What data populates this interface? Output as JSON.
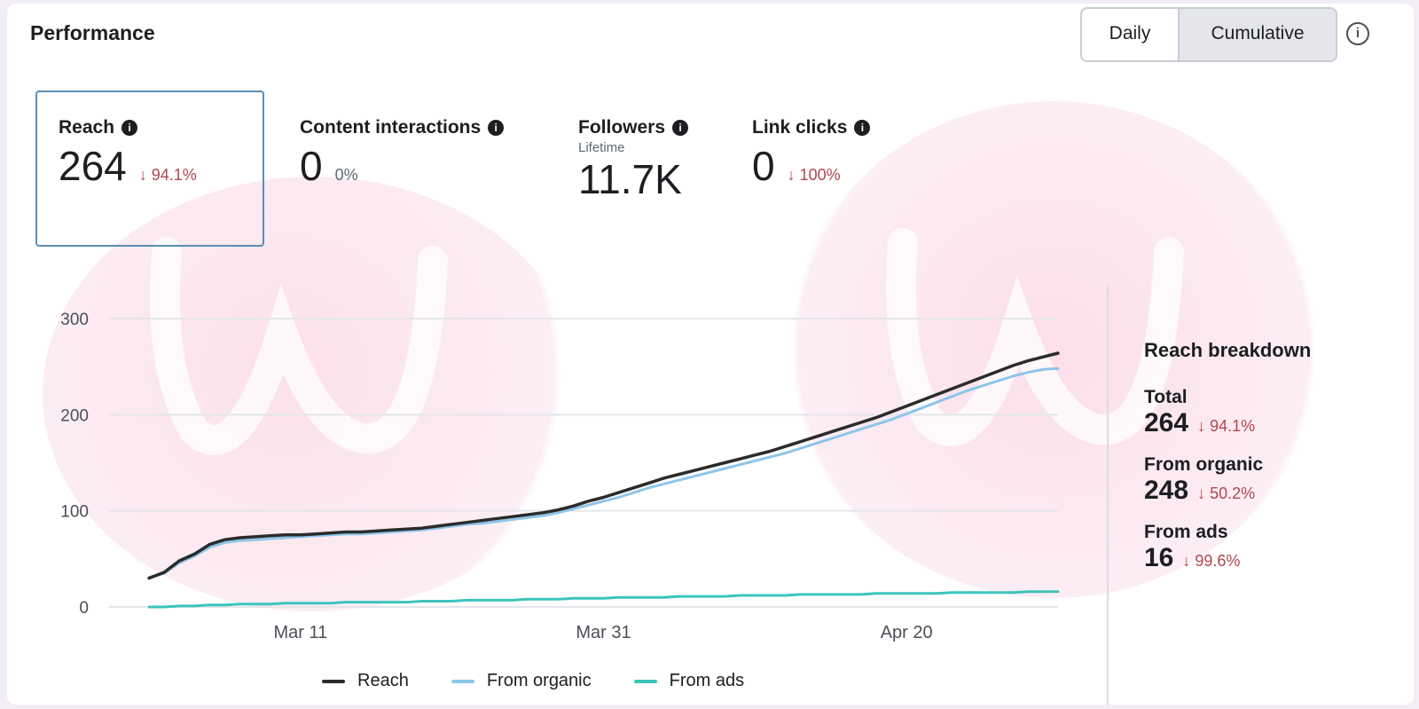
{
  "header": {
    "title": "Performance",
    "toggle": {
      "daily_label": "Daily",
      "cumulative_label": "Cumulative",
      "selected": "Cumulative"
    },
    "info_icon": "info-circle-icon"
  },
  "metrics": [
    {
      "label": "Reach",
      "value": "264",
      "delta": "94.1%",
      "direction": "down",
      "selected": true
    },
    {
      "label": "Content interactions",
      "value": "0",
      "delta": "0%",
      "direction": "none",
      "selected": false
    },
    {
      "label": "Followers",
      "sublabel": "Lifetime",
      "value": "11.7K",
      "selected": false
    },
    {
      "label": "Link clicks",
      "value": "0",
      "delta": "100%",
      "direction": "down",
      "selected": false
    }
  ],
  "breakdown": {
    "title": "Reach breakdown",
    "rows": [
      {
        "label": "Total",
        "value": "264",
        "delta": "94.1%"
      },
      {
        "label": "From organic",
        "value": "248",
        "delta": "50.2%"
      },
      {
        "label": "From ads",
        "value": "16",
        "delta": "99.6%"
      }
    ]
  },
  "colors": {
    "reach": "#2b2b2b",
    "organic": "#8ec5ea",
    "ads": "#3cc4bc",
    "negative": "#b2454f",
    "selected_border": "#5a8fb8"
  },
  "chart_data": {
    "type": "line",
    "x_ticks": [
      "Mar 11",
      "Mar 31",
      "Apr 20"
    ],
    "y_ticks": [
      0,
      100,
      200,
      300
    ],
    "ylim": [
      0,
      300
    ],
    "x": [
      0,
      1,
      2,
      3,
      4,
      5,
      6,
      7,
      8,
      9,
      10,
      11,
      12,
      13,
      14,
      15,
      16,
      17,
      18,
      19,
      20,
      21,
      22,
      23,
      24,
      25,
      26,
      27,
      28,
      29,
      30,
      31,
      32,
      33,
      34,
      35,
      36,
      37,
      38,
      39,
      40,
      41,
      42,
      43,
      44,
      45,
      46,
      47,
      48,
      49,
      50,
      51,
      52,
      53,
      54,
      55,
      56,
      57,
      58,
      59,
      60
    ],
    "x_tick_positions": [
      10,
      30,
      50
    ],
    "legend": "bottom",
    "series": [
      {
        "name": "Reach",
        "color": "#2b2b2b",
        "values": [
          30,
          36,
          48,
          55,
          65,
          70,
          72,
          73,
          74,
          75,
          75,
          76,
          77,
          78,
          78,
          79,
          80,
          81,
          82,
          84,
          86,
          88,
          90,
          92,
          94,
          96,
          98,
          101,
          105,
          110,
          114,
          119,
          124,
          129,
          134,
          138,
          142,
          146,
          150,
          154,
          158,
          162,
          167,
          172,
          177,
          182,
          187,
          192,
          197,
          203,
          209,
          215,
          221,
          227,
          233,
          239,
          245,
          251,
          256,
          260,
          264
        ]
      },
      {
        "name": "From organic",
        "color": "#8ec5ea",
        "values": [
          30,
          35,
          46,
          53,
          62,
          67,
          69,
          70,
          71,
          72,
          73,
          74,
          75,
          76,
          76,
          77,
          78,
          79,
          80,
          82,
          84,
          86,
          87,
          89,
          91,
          93,
          95,
          98,
          102,
          106,
          110,
          114,
          119,
          124,
          128,
          132,
          136,
          140,
          144,
          148,
          152,
          156,
          160,
          165,
          170,
          175,
          180,
          185,
          190,
          195,
          201,
          207,
          213,
          219,
          225,
          230,
          235,
          240,
          244,
          247,
          248
        ]
      },
      {
        "name": "From ads",
        "color": "#3cc4bc",
        "values": [
          0,
          0,
          1,
          1,
          2,
          2,
          3,
          3,
          3,
          4,
          4,
          4,
          4,
          5,
          5,
          5,
          5,
          5,
          6,
          6,
          6,
          7,
          7,
          7,
          7,
          8,
          8,
          8,
          9,
          9,
          9,
          10,
          10,
          10,
          10,
          11,
          11,
          11,
          11,
          12,
          12,
          12,
          12,
          13,
          13,
          13,
          13,
          13,
          14,
          14,
          14,
          14,
          14,
          15,
          15,
          15,
          15,
          15,
          16,
          16,
          16
        ]
      }
    ]
  }
}
